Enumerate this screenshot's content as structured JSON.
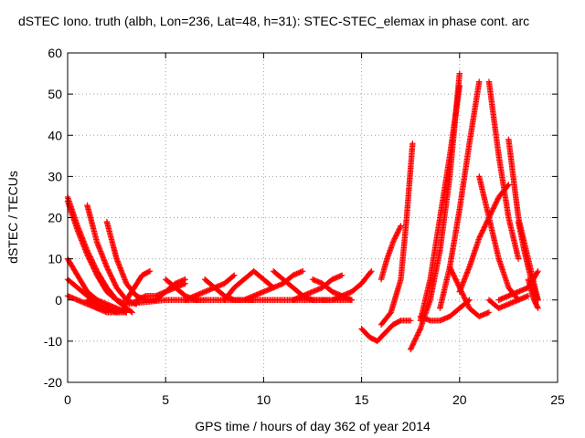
{
  "chart_data": {
    "type": "scatter",
    "title": "dSTEC Iono. truth (albh, Lon=236, Lat=48, h=31): STEC-STEC_elemax in phase cont. arc",
    "xlabel": "GPS time / hours of day 362 of year 2014",
    "ylabel": "dSTEC  / TECUs",
    "xlim": [
      0,
      25
    ],
    "ylim": [
      -20,
      60
    ],
    "x_ticks": [
      0,
      5,
      10,
      15,
      20,
      25
    ],
    "y_ticks": [
      -20,
      -10,
      0,
      10,
      20,
      30,
      40,
      50,
      60
    ],
    "x_tick_labels": [
      "0",
      "5",
      "10",
      "15",
      "20",
      "25"
    ],
    "y_tick_labels": [
      "-20",
      "-10",
      "0",
      "10",
      "20",
      "30",
      "40",
      "50",
      "60"
    ],
    "grid": true,
    "legend": "none",
    "marker": "plus",
    "color": "#ff0000",
    "series": [
      {
        "x": [
          0.0,
          0.5,
          1.0,
          1.5,
          2.0,
          2.5,
          3.0,
          3.3
        ],
        "y": [
          25,
          18,
          12,
          7,
          3,
          0,
          -2,
          -3
        ]
      },
      {
        "x": [
          0.0,
          0.5,
          1.0,
          1.5,
          2.0,
          2.5,
          3.0
        ],
        "y": [
          24,
          17,
          11,
          6,
          2,
          0,
          -1
        ]
      },
      {
        "x": [
          0.0,
          0.5,
          1.0,
          1.5,
          2.0,
          2.5,
          3.0
        ],
        "y": [
          10,
          6,
          2,
          0,
          -1,
          -2,
          -3
        ]
      },
      {
        "x": [
          0.0,
          0.5,
          1.0,
          1.5,
          2.0,
          2.5,
          3.0
        ],
        "y": [
          5,
          3,
          1,
          -1,
          -2,
          -3,
          -3
        ]
      },
      {
        "x": [
          0.0,
          0.5,
          1.0,
          1.5,
          2.0,
          2.5
        ],
        "y": [
          1,
          0,
          -1,
          -2,
          -2,
          -3
        ]
      },
      {
        "x": [
          1.0,
          1.5,
          2.0,
          2.5,
          3.0,
          3.5
        ],
        "y": [
          23,
          14,
          8,
          3,
          0,
          -1
        ]
      },
      {
        "x": [
          2.0,
          2.5,
          3.0,
          3.5,
          4.0,
          4.5
        ],
        "y": [
          19,
          10,
          4,
          1,
          0,
          0
        ]
      },
      {
        "x": [
          1.0,
          1.5,
          2.0,
          2.5,
          3.0
        ],
        "y": [
          0,
          -2,
          -3,
          -3,
          -2
        ]
      },
      {
        "x": [
          3.0,
          3.4,
          3.8,
          4.2
        ],
        "y": [
          0,
          3,
          6,
          7
        ]
      },
      {
        "x": [
          3.5,
          4.0,
          4.5,
          5.0,
          5.5,
          6.0
        ],
        "y": [
          0,
          1,
          1,
          2,
          3,
          4
        ]
      },
      {
        "x": [
          4.5,
          5.0,
          5.5,
          6.0
        ],
        "y": [
          0,
          2,
          4,
          5
        ]
      },
      {
        "x": [
          5.0,
          5.5,
          6.0,
          6.5,
          7.0
        ],
        "y": [
          5,
          3,
          1,
          0,
          0
        ]
      },
      {
        "x": [
          6.0,
          6.5,
          7.0,
          7.5,
          8.0,
          8.5
        ],
        "y": [
          0,
          1,
          2,
          3,
          4,
          6
        ]
      },
      {
        "x": [
          7.0,
          7.5,
          8.0,
          8.5,
          9.0,
          9.5
        ],
        "y": [
          5,
          3,
          1,
          0,
          0,
          0
        ]
      },
      {
        "x": [
          8.0,
          8.5,
          9.0,
          9.5,
          10.0,
          10.5
        ],
        "y": [
          0,
          3,
          5,
          7,
          5,
          3
        ]
      },
      {
        "x": [
          9.0,
          9.5,
          10.0,
          10.5,
          11.0,
          11.5,
          12.0
        ],
        "y": [
          0,
          1,
          2,
          3,
          4,
          6,
          7
        ]
      },
      {
        "x": [
          10.5,
          11.0,
          11.5,
          12.0,
          12.5,
          13.0
        ],
        "y": [
          7,
          5,
          3,
          1,
          0,
          0
        ]
      },
      {
        "x": [
          11.5,
          12.0,
          12.5,
          13.0,
          13.5,
          14.0
        ],
        "y": [
          0,
          1,
          2,
          3,
          5,
          6
        ]
      },
      {
        "x": [
          12.5,
          13.0,
          13.5,
          14.0,
          14.5
        ],
        "y": [
          5,
          4,
          2,
          1,
          0
        ]
      },
      {
        "x": [
          13.0,
          13.5,
          14.0,
          14.5,
          15.0,
          15.5
        ],
        "y": [
          0,
          0,
          1,
          2,
          4,
          7
        ]
      },
      {
        "x": [
          3.0,
          5.0,
          7.0,
          9.0,
          11.0,
          13.0,
          14.5
        ],
        "y": [
          -1,
          0,
          0,
          0,
          0,
          0,
          0
        ]
      },
      {
        "x": [
          15.0,
          15.4,
          15.8,
          16.2,
          16.6,
          17.0,
          17.5
        ],
        "y": [
          -7,
          -9,
          -10,
          -8,
          -6,
          -5,
          -5
        ]
      },
      {
        "x": [
          16.0,
          16.5,
          17.0,
          17.3,
          17.6
        ],
        "y": [
          -6,
          -3,
          5,
          20,
          38
        ]
      },
      {
        "x": [
          16.0,
          16.3,
          16.6,
          17.0
        ],
        "y": [
          5,
          10,
          14,
          18
        ]
      },
      {
        "x": [
          17.5,
          18.0,
          18.5,
          19.0,
          19.5,
          20.0
        ],
        "y": [
          -12,
          -7,
          0,
          12,
          30,
          55
        ]
      },
      {
        "x": [
          18.0,
          18.5,
          19.0,
          19.5,
          20.0
        ],
        "y": [
          -5,
          5,
          20,
          35,
          52
        ]
      },
      {
        "x": [
          19.0,
          19.5,
          20.0,
          20.5,
          21.0
        ],
        "y": [
          -2,
          8,
          22,
          38,
          53
        ]
      },
      {
        "x": [
          19.5,
          20.0,
          20.5,
          21.0,
          21.5
        ],
        "y": [
          8,
          3,
          -2,
          -4,
          -3
        ]
      },
      {
        "x": [
          18.0,
          18.5,
          19.0,
          19.5,
          20.0,
          20.5
        ],
        "y": [
          -4,
          -5,
          -5,
          -4,
          -2,
          0
        ]
      },
      {
        "x": [
          20.0,
          20.5,
          21.0,
          21.5,
          22.0,
          22.5
        ],
        "y": [
          2,
          8,
          15,
          20,
          25,
          28
        ]
      },
      {
        "x": [
          21.5,
          22.0,
          22.5,
          23.0
        ],
        "y": [
          53,
          35,
          20,
          10
        ]
      },
      {
        "x": [
          22.5,
          23.0,
          23.5,
          24.0
        ],
        "y": [
          39,
          20,
          10,
          0
        ]
      },
      {
        "x": [
          21.0,
          21.5,
          22.0,
          22.5,
          23.0
        ],
        "y": [
          30,
          20,
          10,
          3,
          0
        ]
      },
      {
        "x": [
          23.0,
          23.3,
          23.6,
          24.0
        ],
        "y": [
          19,
          12,
          6,
          0
        ]
      },
      {
        "x": [
          22.0,
          22.5,
          23.0,
          23.5,
          24.0
        ],
        "y": [
          0,
          1,
          2,
          3,
          7
        ]
      },
      {
        "x": [
          21.5,
          22.0,
          22.5,
          23.0,
          23.5
        ],
        "y": [
          0,
          -2,
          -1,
          0,
          1
        ]
      },
      {
        "x": [
          23.5,
          23.8,
          24.0
        ],
        "y": [
          5,
          0,
          -2
        ]
      }
    ]
  }
}
